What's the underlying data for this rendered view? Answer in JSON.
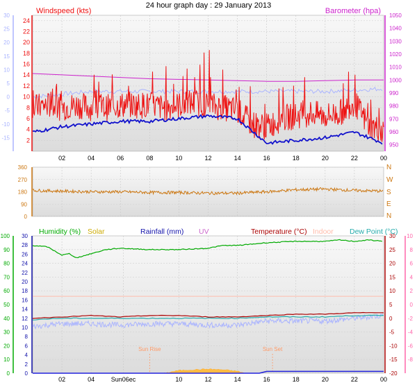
{
  "title": "24 hour graph day : 29 January 2013",
  "colors": {
    "wind": "#ee1111",
    "baro": "#cc22cc",
    "temp_scale": "#aab4ff",
    "dir": "#cc7711",
    "humidity": "#00aa00",
    "solar": "#ccaa00",
    "rain": "#1111aa",
    "uv": "#cc66cc",
    "temperature": "#aa0000",
    "indoor": "#ffbbaa",
    "dew": "#22aaaa",
    "pink": "#ff66aa"
  },
  "chart_data": [
    {
      "type": "line",
      "name": "wind-baro-temperature",
      "title": "24 hour graph day : 29 January 2013",
      "x_ticks": [
        "02",
        "04",
        "06",
        "08",
        "10",
        "12",
        "14",
        "16",
        "18",
        "20",
        "22",
        "00"
      ],
      "left_labels": {
        "windspeed": {
          "label": "Windspeed (kts)",
          "ticks": [
            2,
            4,
            6,
            8,
            10,
            12,
            14,
            16,
            18,
            20,
            22,
            24
          ],
          "ylim": [
            0,
            25
          ]
        },
        "temperature": {
          "ticks": [
            -15,
            -10,
            -5,
            0,
            5,
            10,
            15,
            20,
            25,
            30
          ],
          "ylim": [
            -20,
            30
          ]
        }
      },
      "right_labels": {
        "barometer": {
          "label": "Barometer (hpa)",
          "ticks": [
            950,
            960,
            970,
            980,
            990,
            1000,
            1010,
            1020,
            1030,
            1040,
            1050
          ],
          "ylim": [
            945,
            1050
          ]
        }
      },
      "series": [
        {
          "name": "Windspeed (kts)",
          "axis": "windspeed",
          "x": [
            0,
            1,
            2,
            3,
            4,
            5,
            6,
            7,
            8,
            9,
            10,
            11,
            12,
            13,
            14,
            15,
            16,
            17,
            18,
            19,
            20,
            21,
            22,
            23,
            24
          ],
          "values": [
            8,
            8.5,
            8,
            8.5,
            8,
            8,
            8.5,
            8.5,
            8.5,
            8,
            8.5,
            9,
            8.5,
            8,
            7.5,
            5,
            4.5,
            6,
            6.5,
            7,
            6.5,
            7,
            9,
            4.5,
            4
          ]
        },
        {
          "name": "Windspeed gust",
          "axis": "windspeed",
          "x": [
            0,
            2,
            4,
            5,
            7,
            8,
            9,
            10,
            11,
            12,
            13,
            14,
            15,
            16,
            17,
            18,
            19,
            20,
            21,
            22,
            23,
            24
          ],
          "values": [
            11,
            12,
            13,
            12,
            15,
            16,
            14,
            14,
            15,
            16,
            14,
            13,
            10,
            8,
            10,
            12,
            11,
            12,
            11,
            13,
            10,
            7
          ]
        },
        {
          "name": "Barometer (hpa)",
          "axis": "barometer",
          "x": [
            0,
            2,
            4,
            6,
            8,
            10,
            12,
            14,
            16,
            18,
            20,
            22,
            24
          ],
          "values": [
            1005,
            1004,
            1003,
            1002,
            1001,
            1000.5,
            1000,
            999.5,
            999,
            999,
            999.5,
            1000,
            1000
          ]
        },
        {
          "name": "Temperature scale trace",
          "axis": "temperature",
          "x": [
            0,
            2,
            4,
            6,
            8,
            10,
            12,
            14,
            16,
            18,
            20,
            22,
            24
          ],
          "values": [
            -13,
            -11,
            -10,
            -9,
            -9,
            -8,
            -7,
            -8,
            -17,
            -16,
            -15,
            -13,
            -17
          ]
        },
        {
          "name": "Light temperature trace",
          "axis": "temperature",
          "x": [
            0,
            2,
            4,
            6,
            8,
            10,
            12,
            14,
            16,
            18,
            20,
            22,
            24
          ],
          "values": [
            0,
            1,
            2,
            2,
            2,
            2,
            2,
            2,
            2,
            2,
            2,
            2.5,
            3
          ]
        }
      ]
    },
    {
      "type": "scatter",
      "name": "wind-direction",
      "left_ticks": [
        0,
        90,
        180,
        270,
        360
      ],
      "right_labels": [
        "N",
        "W",
        "S",
        "E",
        "N"
      ],
      "ylim": [
        0,
        360
      ],
      "x_ticks": [
        "02",
        "04",
        "06",
        "08",
        "10",
        "12",
        "14",
        "16",
        "18",
        "20",
        "22",
        "00"
      ],
      "series": [
        {
          "name": "Wind direction",
          "x": [
            0,
            2,
            4,
            6,
            8,
            10,
            12,
            14,
            16,
            18,
            20,
            22,
            24
          ],
          "values": [
            190,
            185,
            180,
            180,
            175,
            175,
            170,
            170,
            180,
            195,
            200,
            190,
            185
          ]
        }
      ]
    },
    {
      "type": "line",
      "name": "humidity-solar-rain-temperature",
      "legend": [
        "Humidity (%)",
        "Solar",
        "Rainfall (mm)",
        "UV",
        "Temperature (°C)",
        "Indoor",
        "Dew Point (°C)"
      ],
      "x_ticks": [
        "02",
        "04",
        "Sun06ec",
        "10",
        "12",
        "14",
        "16",
        "18",
        "20",
        "22",
        "00"
      ],
      "axes": {
        "humidity": {
          "ticks": [
            0,
            10,
            20,
            30,
            40,
            50,
            60,
            70,
            80,
            90,
            100
          ],
          "ylim": [
            0,
            100
          ]
        },
        "rain": {
          "ticks": [
            0,
            2,
            4,
            6,
            8,
            10,
            12,
            14,
            16,
            18,
            20,
            22,
            24,
            26,
            28,
            30
          ],
          "ylim": [
            0,
            30
          ]
        },
        "temperature": {
          "ticks": [
            -20,
            -15,
            -10,
            -5,
            0,
            5,
            10,
            15,
            20,
            25,
            30
          ],
          "ylim": [
            -20,
            30
          ]
        },
        "pink": {
          "ticks": [
            -8,
            -6,
            -4,
            -2,
            0,
            2,
            4,
            6,
            8,
            10
          ],
          "ylim": [
            -10,
            10
          ]
        }
      },
      "annotations": [
        "Sun Rise",
        "Sun Set"
      ],
      "series": [
        {
          "name": "Humidity (%)",
          "axis": "humidity",
          "x": [
            0,
            1,
            2,
            2.5,
            3,
            4,
            5,
            6,
            8,
            10,
            12,
            13,
            14,
            15,
            16,
            18,
            20,
            21,
            22,
            23,
            24
          ],
          "values": [
            93,
            92,
            86,
            87,
            84,
            87,
            90,
            91,
            90,
            90,
            91,
            93,
            93,
            94,
            95,
            96,
            96,
            97,
            96,
            97,
            96
          ]
        },
        {
          "name": "Temperature (°C)",
          "axis": "temperature",
          "x": [
            0,
            2,
            4,
            6,
            8,
            10,
            12,
            14,
            16,
            18,
            20,
            22,
            24
          ],
          "values": [
            0,
            0.5,
            1,
            0.5,
            1,
            1,
            0.5,
            0.5,
            1,
            1.5,
            1.5,
            2,
            2
          ]
        },
        {
          "name": "Indoor",
          "axis": "temperature",
          "x": [
            0,
            4,
            8,
            12,
            16,
            20,
            24
          ],
          "values": [
            8,
            8,
            8,
            8,
            8,
            8,
            8
          ]
        },
        {
          "name": "Dew Point (°C)",
          "axis": "temperature",
          "x": [
            0,
            2,
            4,
            6,
            8,
            10,
            12,
            14,
            16,
            18,
            20,
            22,
            24
          ],
          "values": [
            -0.5,
            0,
            0,
            0,
            0,
            0,
            0,
            0,
            0.5,
            0.5,
            0.5,
            1,
            1
          ]
        },
        {
          "name": "Light temperature trace",
          "axis": "temperature",
          "x": [
            0,
            2,
            4,
            6,
            8,
            10,
            12,
            14,
            16,
            18,
            20,
            22,
            24
          ],
          "values": [
            -3,
            -2,
            -2,
            -2.5,
            -2,
            -2,
            -2.5,
            -2.5,
            -1,
            -1,
            -1,
            0,
            1
          ]
        },
        {
          "name": "Solar",
          "axis": "humidity",
          "x": [
            9,
            10,
            11,
            12,
            13,
            14,
            14.5
          ],
          "values": [
            0,
            2,
            2.5,
            3,
            2.5,
            1.5,
            0
          ]
        },
        {
          "name": "Rainfall (mm)",
          "axis": "rain",
          "x": [
            0,
            15.5,
            16,
            17,
            24
          ],
          "values": [
            0,
            0,
            0.4,
            0.4,
            0.4
          ]
        }
      ]
    }
  ]
}
